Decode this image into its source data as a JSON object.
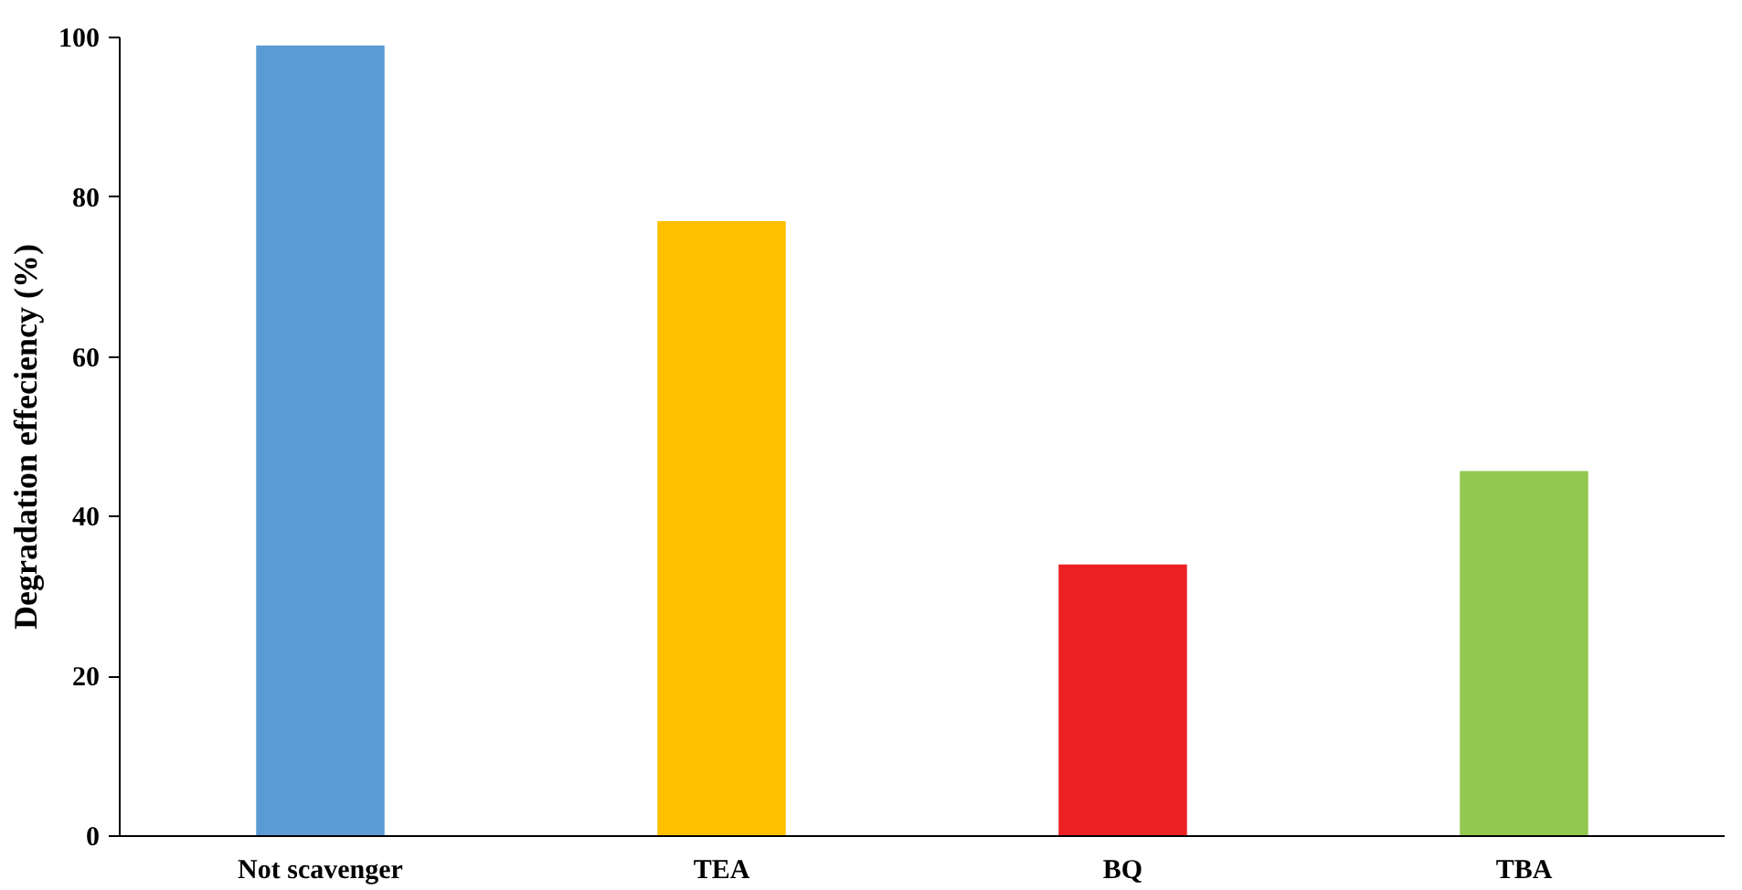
{
  "chart_data": {
    "type": "bar",
    "ylabel": "Degradation effeciency (%)",
    "categories": [
      "Not scavenger",
      "TEA",
      "BQ",
      "TBA"
    ],
    "values": [
      99,
      77,
      34,
      45.7
    ],
    "colors": [
      "#5b9bd5",
      "#ffc000",
      "#ed2024",
      "#92c850"
    ],
    "ylim": [
      0,
      100
    ],
    "yticks": [
      0,
      20,
      40,
      60,
      80,
      100
    ],
    "grid": false
  }
}
